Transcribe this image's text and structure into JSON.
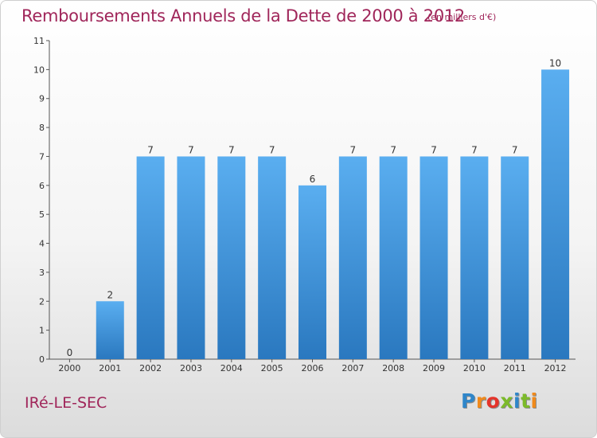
{
  "title": "Remboursements Annuels de la Dette de 2000 à 2012",
  "unit_note": "(en milliers d'€)",
  "commune": "IRé-LE-SEC",
  "logo": {
    "letters": [
      "P",
      "r",
      "o",
      "x",
      "i",
      "t",
      "i"
    ],
    "colors": [
      "#2f86c9",
      "#f08a1c",
      "#e4342b",
      "#7cba2a",
      "#2f86c9",
      "#7cba2a",
      "#f08a1c"
    ]
  },
  "chart_data": {
    "type": "bar",
    "title": "Remboursements Annuels de la Dette de 2000 à 2012",
    "xlabel": "",
    "ylabel": "",
    "categories": [
      "2000",
      "2001",
      "2002",
      "2003",
      "2004",
      "2005",
      "2006",
      "2007",
      "2008",
      "2009",
      "2010",
      "2011",
      "2012"
    ],
    "values": [
      0,
      2,
      7,
      7,
      7,
      7,
      6,
      7,
      7,
      7,
      7,
      7,
      10
    ],
    "data_labels": [
      "0",
      "2",
      "7",
      "7",
      "7",
      "7",
      "6",
      "7",
      "7",
      "7",
      "7",
      "7",
      "10"
    ],
    "y_ticks": [
      "0",
      "1",
      "2",
      "3",
      "4",
      "5",
      "6",
      "7",
      "8",
      "9",
      "10",
      "11"
    ],
    "ylim": [
      0,
      11
    ],
    "grid": false,
    "bar_color": "#3a8fd6"
  }
}
